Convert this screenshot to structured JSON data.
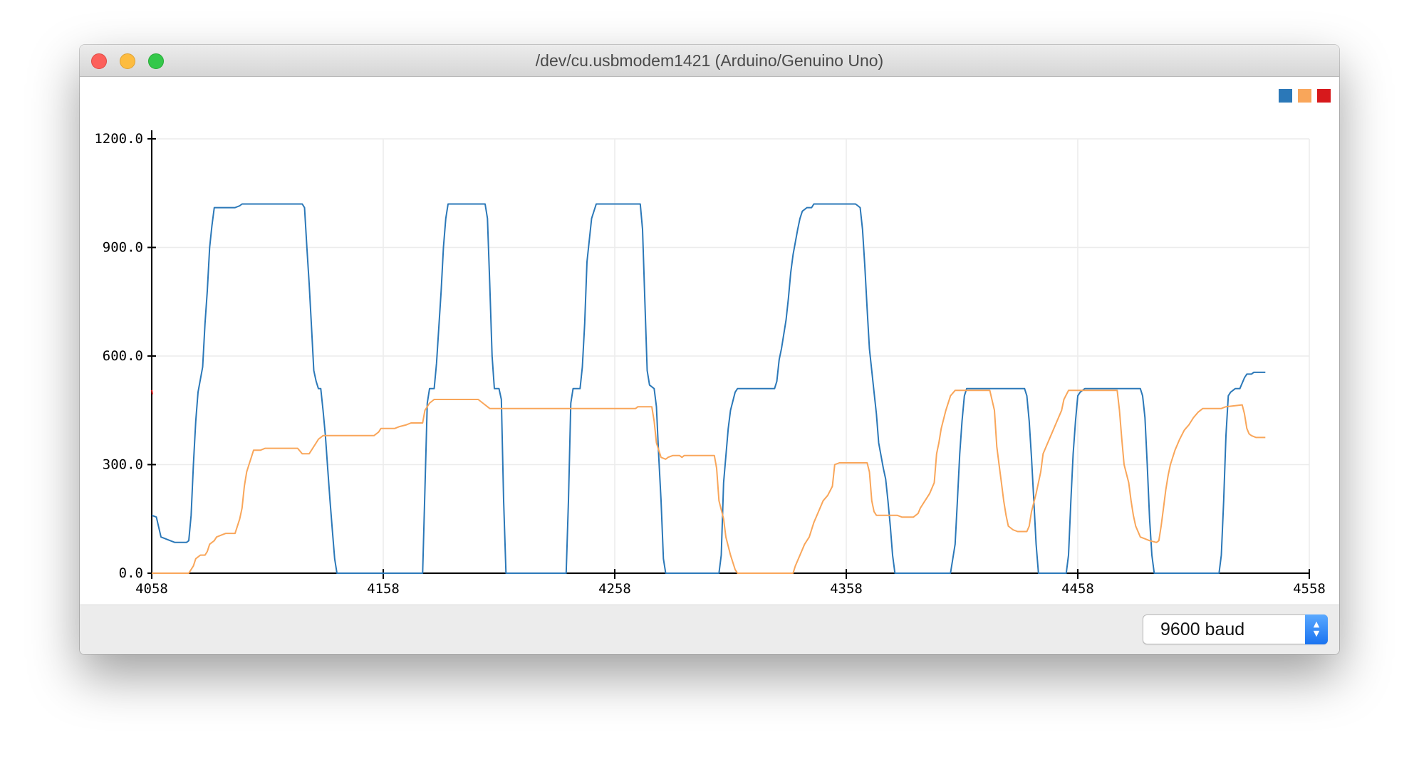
{
  "window": {
    "title": "/dev/cu.usbmodem1421 (Arduino/Genuino Uno)"
  },
  "colors": {
    "series1": "#2b78b8",
    "series2": "#f9a65a",
    "series3": "#d7191c"
  },
  "baud": {
    "selected": "9600 baud"
  },
  "chart_data": {
    "type": "line",
    "xlim": [
      4058,
      4558
    ],
    "ylim": [
      0,
      1200
    ],
    "x_ticks": [
      "4058",
      "4158",
      "4258",
      "4358",
      "4458",
      "4558"
    ],
    "y_ticks": [
      "0.0",
      "300.0",
      "600.0",
      "900.0",
      "1200.0"
    ],
    "grid": true,
    "legend": "top-right",
    "series": [
      {
        "color": "#2b78b8",
        "points": [
          [
            4058,
            160
          ],
          [
            4060,
            155
          ],
          [
            4062,
            100
          ],
          [
            4066,
            90
          ],
          [
            4068,
            85
          ],
          [
            4073,
            85
          ],
          [
            4074,
            90
          ],
          [
            4075,
            160
          ],
          [
            4076,
            300
          ],
          [
            4077,
            420
          ],
          [
            4078,
            500
          ],
          [
            4080,
            570
          ],
          [
            4081,
            690
          ],
          [
            4082,
            780
          ],
          [
            4083,
            900
          ],
          [
            4084,
            960
          ],
          [
            4085,
            1010
          ],
          [
            4094,
            1010
          ],
          [
            4096,
            1015
          ],
          [
            4097,
            1020
          ],
          [
            4123,
            1020
          ],
          [
            4124,
            1010
          ],
          [
            4125,
            900
          ],
          [
            4126,
            800
          ],
          [
            4127,
            680
          ],
          [
            4128,
            560
          ],
          [
            4129,
            530
          ],
          [
            4130,
            510
          ],
          [
            4131,
            510
          ],
          [
            4132,
            450
          ],
          [
            4133,
            380
          ],
          [
            4134,
            290
          ],
          [
            4135,
            200
          ],
          [
            4136,
            120
          ],
          [
            4137,
            40
          ],
          [
            4138,
            0
          ],
          [
            4175,
            0
          ],
          [
            4176,
            230
          ],
          [
            4177,
            470
          ],
          [
            4178,
            510
          ],
          [
            4180,
            510
          ],
          [
            4181,
            580
          ],
          [
            4183,
            780
          ],
          [
            4184,
            900
          ],
          [
            4185,
            980
          ],
          [
            4186,
            1020
          ],
          [
            4202,
            1020
          ],
          [
            4203,
            980
          ],
          [
            4204,
            800
          ],
          [
            4205,
            600
          ],
          [
            4206,
            510
          ],
          [
            4208,
            510
          ],
          [
            4209,
            480
          ],
          [
            4210,
            200
          ],
          [
            4211,
            0
          ],
          [
            4237,
            0
          ],
          [
            4238,
            200
          ],
          [
            4239,
            470
          ],
          [
            4240,
            510
          ],
          [
            4243,
            510
          ],
          [
            4244,
            570
          ],
          [
            4245,
            690
          ],
          [
            4246,
            860
          ],
          [
            4248,
            980
          ],
          [
            4250,
            1020
          ],
          [
            4269,
            1020
          ],
          [
            4270,
            950
          ],
          [
            4271,
            750
          ],
          [
            4272,
            560
          ],
          [
            4273,
            520
          ],
          [
            4275,
            510
          ],
          [
            4276,
            460
          ],
          [
            4277,
            320
          ],
          [
            4278,
            200
          ],
          [
            4279,
            40
          ],
          [
            4280,
            0
          ],
          [
            4303,
            0
          ],
          [
            4304,
            50
          ],
          [
            4305,
            250
          ],
          [
            4307,
            400
          ],
          [
            4308,
            450
          ],
          [
            4310,
            500
          ],
          [
            4311,
            510
          ],
          [
            4327,
            510
          ],
          [
            4328,
            530
          ],
          [
            4329,
            590
          ],
          [
            4330,
            620
          ],
          [
            4332,
            700
          ],
          [
            4333,
            760
          ],
          [
            4334,
            830
          ],
          [
            4335,
            880
          ],
          [
            4337,
            950
          ],
          [
            4338,
            980
          ],
          [
            4339,
            1000
          ],
          [
            4341,
            1010
          ],
          [
            4343,
            1010
          ],
          [
            4344,
            1020
          ],
          [
            4362,
            1020
          ],
          [
            4363,
            1015
          ],
          [
            4364,
            1010
          ],
          [
            4365,
            950
          ],
          [
            4366,
            850
          ],
          [
            4367,
            730
          ],
          [
            4368,
            620
          ],
          [
            4370,
            500
          ],
          [
            4371,
            440
          ],
          [
            4372,
            360
          ],
          [
            4374,
            290
          ],
          [
            4375,
            260
          ],
          [
            4376,
            200
          ],
          [
            4377,
            130
          ],
          [
            4378,
            50
          ],
          [
            4379,
            0
          ],
          [
            4403,
            0
          ],
          [
            4405,
            80
          ],
          [
            4406,
            200
          ],
          [
            4407,
            330
          ],
          [
            4408,
            420
          ],
          [
            4409,
            490
          ],
          [
            4410,
            510
          ],
          [
            4435,
            510
          ],
          [
            4436,
            490
          ],
          [
            4437,
            420
          ],
          [
            4438,
            320
          ],
          [
            4439,
            200
          ],
          [
            4440,
            80
          ],
          [
            4441,
            0
          ],
          [
            4453,
            0
          ],
          [
            4454,
            50
          ],
          [
            4455,
            200
          ],
          [
            4456,
            330
          ],
          [
            4457,
            420
          ],
          [
            4458,
            490
          ],
          [
            4459,
            500
          ],
          [
            4461,
            510
          ],
          [
            4485,
            510
          ],
          [
            4486,
            490
          ],
          [
            4487,
            430
          ],
          [
            4488,
            300
          ],
          [
            4489,
            150
          ],
          [
            4490,
            50
          ],
          [
            4491,
            0
          ],
          [
            4519,
            0
          ],
          [
            4520,
            50
          ],
          [
            4521,
            200
          ],
          [
            4522,
            380
          ],
          [
            4523,
            490
          ],
          [
            4524,
            500
          ],
          [
            4526,
            510
          ],
          [
            4528,
            510
          ],
          [
            4530,
            540
          ],
          [
            4531,
            550
          ],
          [
            4533,
            550
          ],
          [
            4534,
            555
          ],
          [
            4539,
            555
          ]
        ]
      },
      {
        "color": "#f9a65a",
        "points": [
          [
            4058,
            0
          ],
          [
            4074,
            0
          ],
          [
            4076,
            20
          ],
          [
            4077,
            40
          ],
          [
            4079,
            50
          ],
          [
            4081,
            50
          ],
          [
            4082,
            60
          ],
          [
            4083,
            80
          ],
          [
            4085,
            90
          ],
          [
            4086,
            100
          ],
          [
            4088,
            105
          ],
          [
            4090,
            110
          ],
          [
            4094,
            110
          ],
          [
            4096,
            150
          ],
          [
            4097,
            180
          ],
          [
            4098,
            240
          ],
          [
            4099,
            280
          ],
          [
            4100,
            300
          ],
          [
            4101,
            320
          ],
          [
            4102,
            340
          ],
          [
            4105,
            340
          ],
          [
            4107,
            345
          ],
          [
            4121,
            345
          ],
          [
            4123,
            330
          ],
          [
            4126,
            330
          ],
          [
            4127,
            340
          ],
          [
            4129,
            360
          ],
          [
            4130,
            370
          ],
          [
            4132,
            380
          ],
          [
            4154,
            380
          ],
          [
            4156,
            390
          ],
          [
            4157,
            400
          ],
          [
            4163,
            400
          ],
          [
            4165,
            405
          ],
          [
            4168,
            410
          ],
          [
            4170,
            415
          ],
          [
            4175,
            415
          ],
          [
            4176,
            450
          ],
          [
            4178,
            470
          ],
          [
            4180,
            480
          ],
          [
            4199,
            480
          ],
          [
            4201,
            470
          ],
          [
            4203,
            460
          ],
          [
            4204,
            455
          ],
          [
            4267,
            455
          ],
          [
            4268,
            460
          ],
          [
            4274,
            460
          ],
          [
            4275,
            420
          ],
          [
            4276,
            360
          ],
          [
            4278,
            320
          ],
          [
            4280,
            315
          ],
          [
            4281,
            320
          ],
          [
            4283,
            325
          ],
          [
            4286,
            325
          ],
          [
            4287,
            320
          ],
          [
            4288,
            325
          ],
          [
            4301,
            325
          ],
          [
            4302,
            290
          ],
          [
            4303,
            200
          ],
          [
            4305,
            150
          ],
          [
            4306,
            100
          ],
          [
            4308,
            50
          ],
          [
            4310,
            10
          ],
          [
            4311,
            0
          ],
          [
            4335,
            0
          ],
          [
            4336,
            20
          ],
          [
            4338,
            50
          ],
          [
            4340,
            80
          ],
          [
            4342,
            100
          ],
          [
            4344,
            140
          ],
          [
            4346,
            170
          ],
          [
            4348,
            200
          ],
          [
            4350,
            215
          ],
          [
            4352,
            240
          ],
          [
            4353,
            300
          ],
          [
            4355,
            305
          ],
          [
            4367,
            305
          ],
          [
            4368,
            280
          ],
          [
            4369,
            200
          ],
          [
            4370,
            170
          ],
          [
            4371,
            160
          ],
          [
            4380,
            160
          ],
          [
            4382,
            155
          ],
          [
            4387,
            155
          ],
          [
            4389,
            165
          ],
          [
            4390,
            180
          ],
          [
            4392,
            200
          ],
          [
            4394,
            220
          ],
          [
            4396,
            250
          ],
          [
            4397,
            330
          ],
          [
            4398,
            360
          ],
          [
            4399,
            400
          ],
          [
            4401,
            450
          ],
          [
            4403,
            490
          ],
          [
            4405,
            505
          ],
          [
            4420,
            505
          ],
          [
            4422,
            450
          ],
          [
            4423,
            350
          ],
          [
            4424,
            300
          ],
          [
            4425,
            250
          ],
          [
            4426,
            200
          ],
          [
            4427,
            160
          ],
          [
            4428,
            130
          ],
          [
            4430,
            120
          ],
          [
            4432,
            115
          ],
          [
            4436,
            115
          ],
          [
            4437,
            130
          ],
          [
            4438,
            170
          ],
          [
            4440,
            220
          ],
          [
            4442,
            280
          ],
          [
            4443,
            330
          ],
          [
            4445,
            360
          ],
          [
            4447,
            390
          ],
          [
            4449,
            420
          ],
          [
            4451,
            450
          ],
          [
            4452,
            480
          ],
          [
            4454,
            505
          ],
          [
            4475,
            505
          ],
          [
            4476,
            450
          ],
          [
            4477,
            370
          ],
          [
            4478,
            300
          ],
          [
            4480,
            250
          ],
          [
            4481,
            200
          ],
          [
            4482,
            160
          ],
          [
            4483,
            130
          ],
          [
            4485,
            100
          ],
          [
            4487,
            95
          ],
          [
            4489,
            90
          ],
          [
            4492,
            85
          ],
          [
            4493,
            90
          ],
          [
            4494,
            130
          ],
          [
            4495,
            180
          ],
          [
            4496,
            230
          ],
          [
            4497,
            270
          ],
          [
            4498,
            300
          ],
          [
            4500,
            340
          ],
          [
            4502,
            370
          ],
          [
            4504,
            395
          ],
          [
            4506,
            410
          ],
          [
            4508,
            430
          ],
          [
            4510,
            445
          ],
          [
            4512,
            455
          ],
          [
            4520,
            455
          ],
          [
            4522,
            460
          ],
          [
            4529,
            465
          ],
          [
            4530,
            440
          ],
          [
            4531,
            400
          ],
          [
            4532,
            385
          ],
          [
            4533,
            380
          ],
          [
            4535,
            375
          ],
          [
            4539,
            375
          ]
        ]
      },
      {
        "color": "#d7191c",
        "points": [
          [
            4058,
            500
          ]
        ]
      }
    ]
  }
}
